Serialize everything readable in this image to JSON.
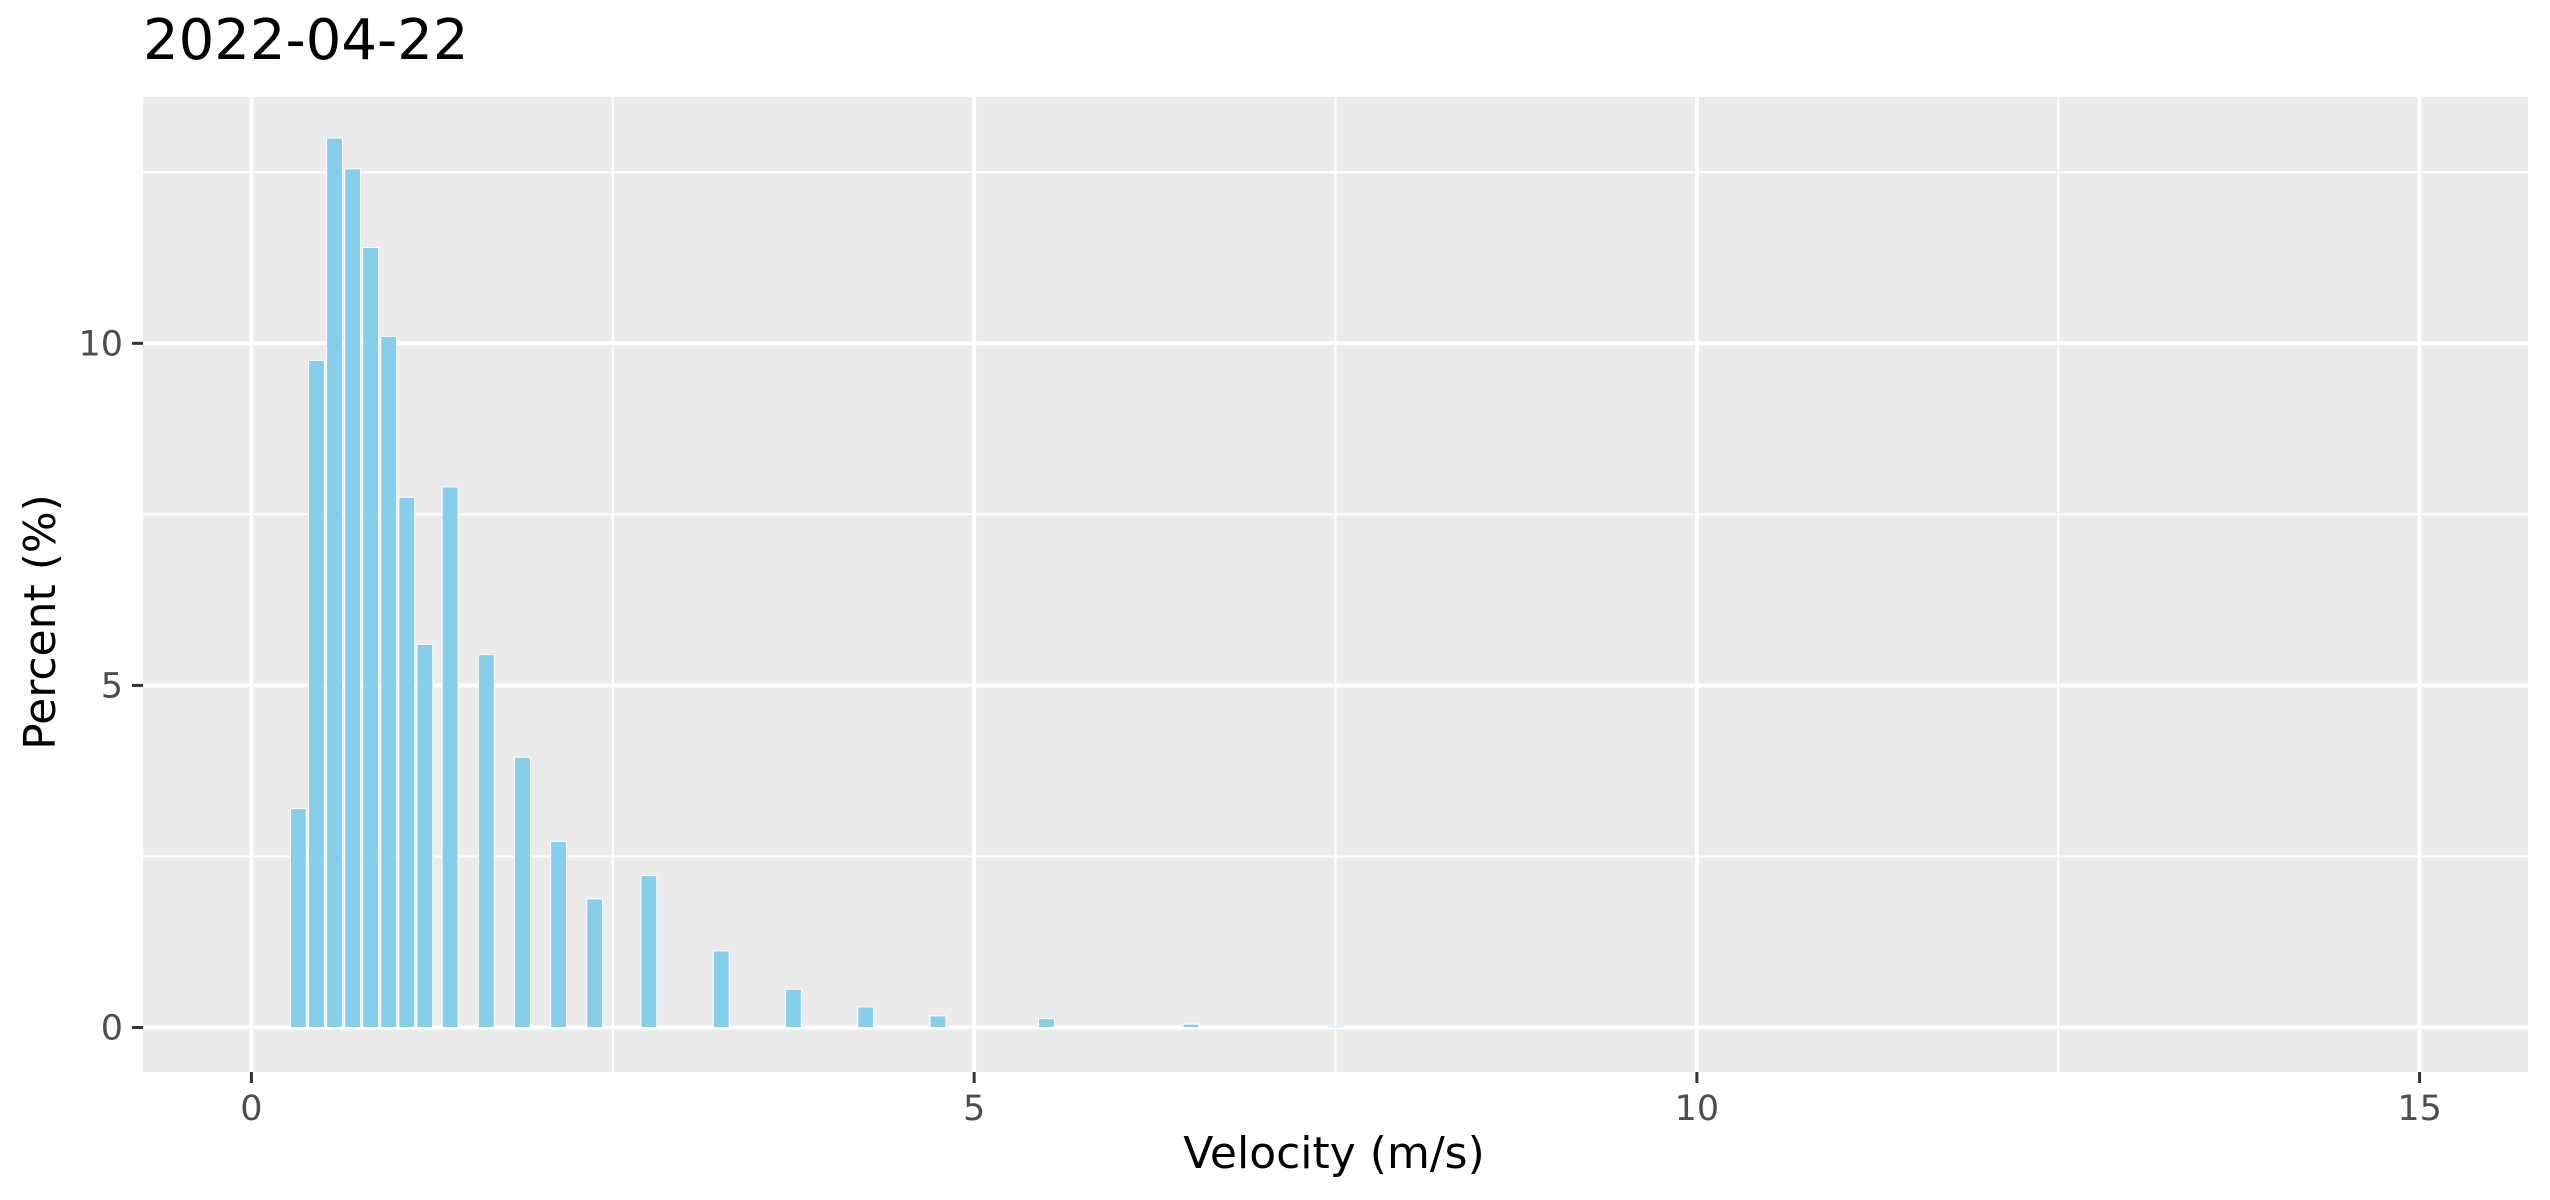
{
  "chart_data": {
    "type": "bar",
    "title": "2022-04-22",
    "xlabel": "Velocity (m/s)",
    "ylabel": "Percent (%)",
    "xlim": [
      -0.75,
      15.75
    ],
    "ylim": [
      -0.65,
      13.6
    ],
    "x_ticks": [
      0,
      5,
      10,
      15
    ],
    "y_ticks": [
      0,
      5,
      10
    ],
    "x_tick_labels": [
      "0",
      "5",
      "10",
      "15"
    ],
    "y_tick_labels": [
      "0",
      "5",
      "10"
    ],
    "grid": true,
    "bar_color": "#87ceeb",
    "panel_color": "#ebebeb",
    "grid_color": "#ffffff",
    "bar_width": 0.11,
    "series": [
      {
        "x": [
          0.325,
          0.45,
          0.575,
          0.7,
          0.825,
          0.95,
          1.075,
          1.2,
          1.375,
          1.625,
          1.875,
          2.125,
          2.375,
          2.75,
          3.25,
          3.75,
          4.25,
          4.75,
          5.5,
          6.5,
          7.5,
          8.5,
          9.5
        ],
        "values": [
          3.2,
          9.75,
          13.0,
          12.55,
          11.4,
          10.1,
          7.75,
          5.6,
          7.9,
          5.45,
          3.95,
          2.72,
          1.88,
          2.22,
          1.12,
          0.56,
          0.3,
          0.17,
          0.13,
          0.05,
          0.02,
          0.01,
          0.005
        ]
      }
    ]
  }
}
